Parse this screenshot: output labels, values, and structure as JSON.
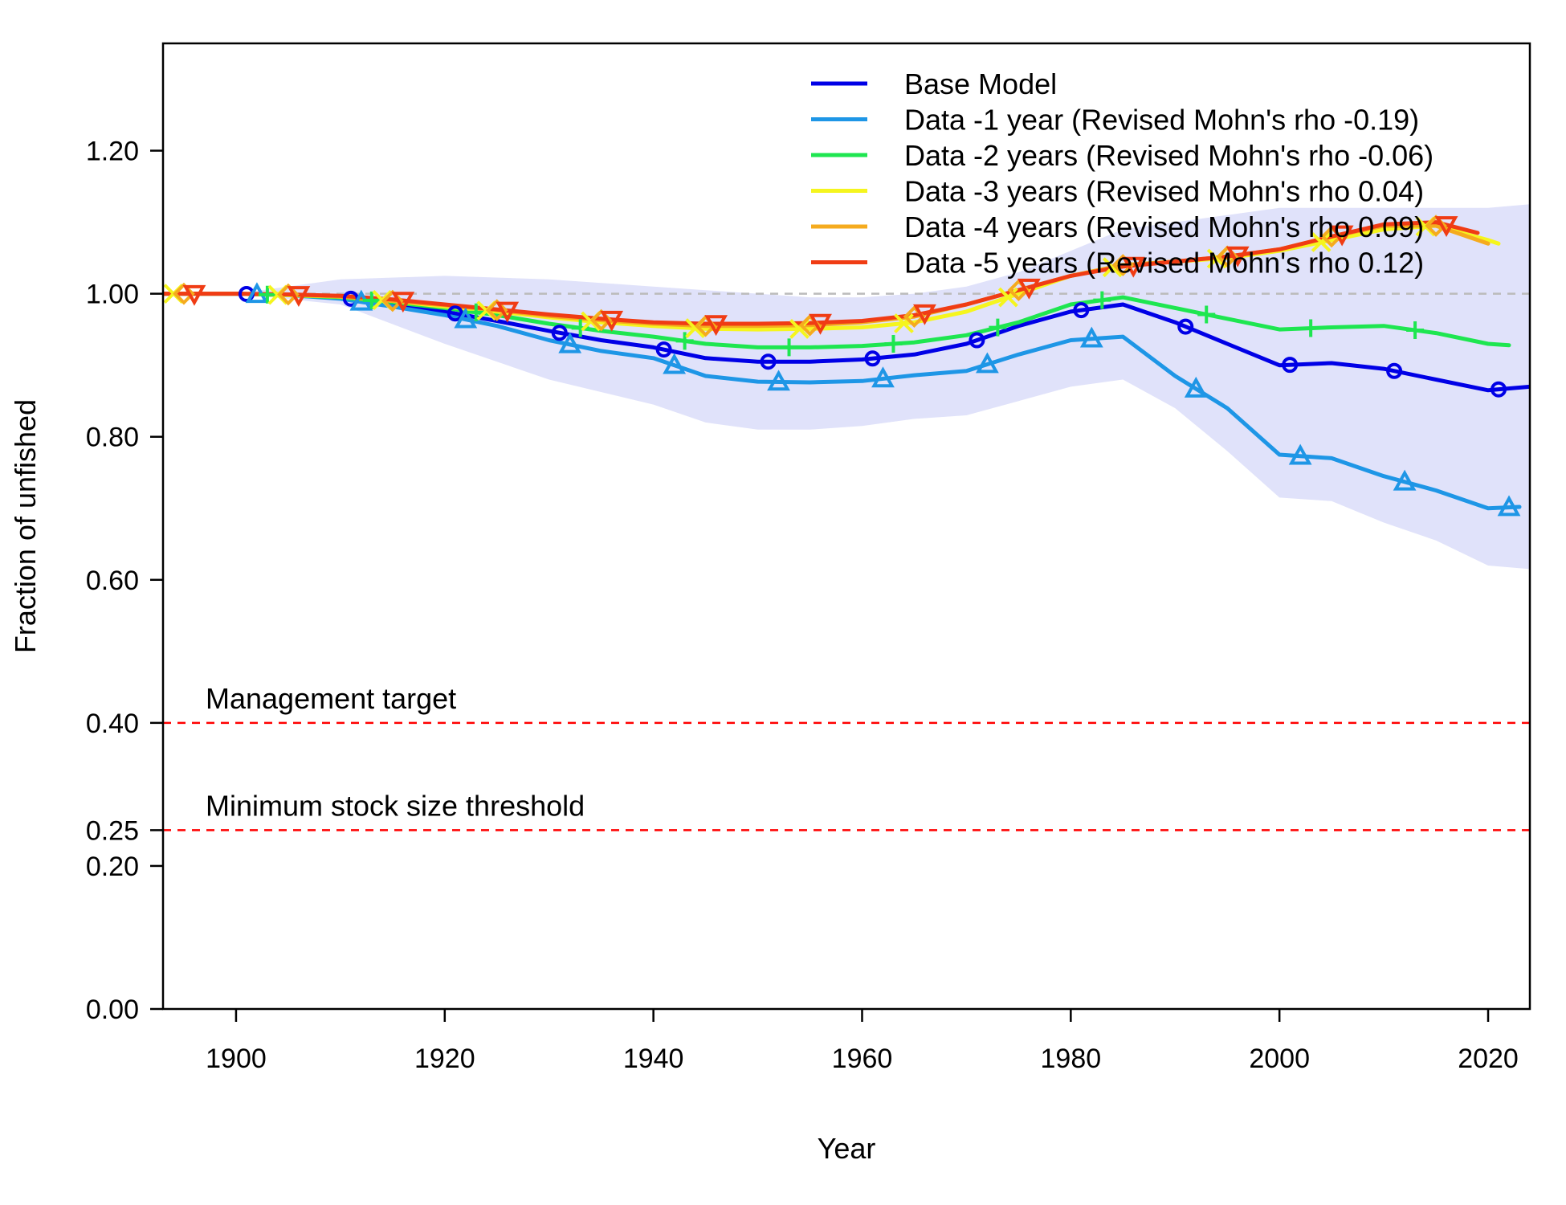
{
  "chart_data": {
    "type": "line",
    "title": "",
    "xlabel": "Year",
    "ylabel": "Fraction of unfished",
    "xlim": [
      1893,
      2024
    ],
    "ylim": [
      0,
      1.35
    ],
    "x_ticks": [
      1900,
      1920,
      1940,
      1960,
      1980,
      2000,
      2020
    ],
    "y_ticks": [
      0.0,
      0.2,
      0.25,
      0.4,
      0.6,
      0.8,
      1.0,
      1.2
    ],
    "y_tick_labels": [
      "0.00",
      "0.20",
      "0.25",
      "0.40",
      "0.60",
      "0.80",
      "1.00",
      "1.20"
    ],
    "grid": false,
    "legend_position": "top-right",
    "reference_lines": [
      {
        "y": 1.0,
        "label": "",
        "color": "#bbbbbb"
      },
      {
        "y": 0.4,
        "label": "Management target",
        "color": "#ff0000"
      },
      {
        "y": 0.25,
        "label": "Minimum stock size threshold",
        "color": "#ff0000"
      }
    ],
    "confidence_band": {
      "color": "#e0e2fa",
      "x": [
        1893,
        1900,
        1910,
        1920,
        1930,
        1940,
        1945,
        1950,
        1955,
        1960,
        1965,
        1970,
        1975,
        1980,
        1985,
        1990,
        1995,
        2000,
        2005,
        2010,
        2015,
        2020,
        2024
      ],
      "upper": [
        1.0,
        1.0,
        1.02,
        1.025,
        1.02,
        1.01,
        1.005,
        1.0,
        0.995,
        0.995,
        1.0,
        1.01,
        1.03,
        1.06,
        1.09,
        1.1,
        1.11,
        1.12,
        1.12,
        1.12,
        1.12,
        1.12,
        1.125
      ],
      "lower": [
        1.0,
        1.0,
        0.985,
        0.93,
        0.88,
        0.845,
        0.82,
        0.81,
        0.81,
        0.815,
        0.825,
        0.83,
        0.85,
        0.87,
        0.88,
        0.84,
        0.78,
        0.715,
        0.71,
        0.68,
        0.655,
        0.62,
        0.615
      ]
    },
    "series": [
      {
        "name": "Base Model",
        "color": "#0000e6",
        "marker": "circle",
        "x": [
          1893,
          1900,
          1905,
          1910,
          1915,
          1920,
          1925,
          1930,
          1935,
          1940,
          1945,
          1950,
          1955,
          1960,
          1965,
          1970,
          1975,
          1980,
          1985,
          1990,
          1995,
          2000,
          2005,
          2010,
          2015,
          2020,
          2024
        ],
        "y": [
          1.0,
          1.0,
          0.998,
          0.995,
          0.985,
          0.975,
          0.962,
          0.948,
          0.935,
          0.925,
          0.91,
          0.905,
          0.905,
          0.908,
          0.915,
          0.93,
          0.955,
          0.975,
          0.985,
          0.96,
          0.93,
          0.9,
          0.903,
          0.895,
          0.88,
          0.865,
          0.87
        ],
        "marker_x": [
          1901,
          1911,
          1921,
          1931,
          1941,
          1951,
          1961,
          1971,
          1981,
          1991,
          2001,
          2011,
          2021
        ]
      },
      {
        "name": "Data -1 year (Revised Mohn's rho -0.19)",
        "color": "#1e96e6",
        "marker": "triangle-up",
        "x": [
          1893,
          1900,
          1905,
          1910,
          1915,
          1920,
          1925,
          1930,
          1935,
          1940,
          1945,
          1950,
          1955,
          1960,
          1965,
          1970,
          1975,
          1980,
          1985,
          1990,
          1995,
          2000,
          2005,
          2010,
          2015,
          2020,
          2023
        ],
        "y": [
          1.0,
          1.0,
          0.998,
          0.993,
          0.982,
          0.97,
          0.955,
          0.935,
          0.92,
          0.91,
          0.885,
          0.877,
          0.876,
          0.878,
          0.886,
          0.892,
          0.915,
          0.935,
          0.94,
          0.885,
          0.84,
          0.775,
          0.77,
          0.745,
          0.725,
          0.7,
          0.702
        ],
        "marker_x": [
          1902,
          1912,
          1922,
          1932,
          1942,
          1952,
          1962,
          1972,
          1982,
          1992,
          2002,
          2012,
          2022
        ]
      },
      {
        "name": "Data -2 years (Revised Mohn's rho -0.06)",
        "color": "#1ee650",
        "marker": "plus",
        "x": [
          1893,
          1900,
          1905,
          1910,
          1915,
          1920,
          1925,
          1930,
          1935,
          1940,
          1945,
          1950,
          1955,
          1960,
          1965,
          1970,
          1975,
          1980,
          1985,
          1990,
          1995,
          2000,
          2005,
          2010,
          2015,
          2020,
          2022
        ],
        "y": [
          1.0,
          1.0,
          0.998,
          0.995,
          0.988,
          0.98,
          0.97,
          0.958,
          0.948,
          0.94,
          0.93,
          0.925,
          0.925,
          0.927,
          0.932,
          0.942,
          0.96,
          0.985,
          0.995,
          0.98,
          0.965,
          0.95,
          0.953,
          0.955,
          0.945,
          0.93,
          0.928
        ],
        "marker_x": [
          1903,
          1913,
          1923,
          1933,
          1943,
          1953,
          1963,
          1973,
          1983,
          1993,
          2003,
          2013
        ]
      },
      {
        "name": "Data -3 years (Revised Mohn's rho 0.04)",
        "color": "#f5f51e",
        "marker": "x",
        "x": [
          1893,
          1900,
          1905,
          1910,
          1915,
          1920,
          1925,
          1930,
          1935,
          1940,
          1945,
          1950,
          1955,
          1960,
          1965,
          1970,
          1975,
          1980,
          1985,
          1990,
          1995,
          2000,
          2005,
          2010,
          2015,
          2020,
          2021
        ],
        "y": [
          1.0,
          1.0,
          0.998,
          0.996,
          0.99,
          0.982,
          0.975,
          0.967,
          0.96,
          0.955,
          0.951,
          0.95,
          0.951,
          0.953,
          0.96,
          0.975,
          1.0,
          1.025,
          1.04,
          1.045,
          1.05,
          1.06,
          1.075,
          1.09,
          1.095,
          1.075,
          1.07
        ],
        "marker_x": [
          1894,
          1904,
          1914,
          1924,
          1934,
          1944,
          1954,
          1964,
          1974,
          1984,
          1994,
          2004,
          2014
        ]
      },
      {
        "name": "Data -4 years (Revised Mohn's rho 0.09)",
        "color": "#f5ab1e",
        "marker": "diamond",
        "x": [
          1893,
          1900,
          1905,
          1910,
          1915,
          1920,
          1925,
          1930,
          1935,
          1940,
          1945,
          1950,
          1955,
          1960,
          1965,
          1970,
          1975,
          1980,
          1985,
          1990,
          1995,
          2000,
          2005,
          2010,
          2015,
          2020
        ],
        "y": [
          1.0,
          1.0,
          0.999,
          0.996,
          0.99,
          0.984,
          0.977,
          0.969,
          0.963,
          0.958,
          0.955,
          0.955,
          0.956,
          0.96,
          0.968,
          0.985,
          1.005,
          1.025,
          1.04,
          1.045,
          1.052,
          1.062,
          1.08,
          1.095,
          1.095,
          1.07
        ],
        "marker_x": [
          1895,
          1905,
          1915,
          1925,
          1935,
          1945,
          1955,
          1965,
          1975,
          1985,
          1995,
          2005,
          2015
        ]
      },
      {
        "name": "Data -5 years (Revised Mohn's rho 0.12)",
        "color": "#f03c14",
        "marker": "triangle-down",
        "x": [
          1893,
          1900,
          1905,
          1910,
          1915,
          1920,
          1925,
          1930,
          1935,
          1940,
          1945,
          1950,
          1955,
          1960,
          1965,
          1970,
          1975,
          1980,
          1985,
          1990,
          1995,
          2000,
          2005,
          2010,
          2015,
          2019
        ],
        "y": [
          1.0,
          1.0,
          0.999,
          0.997,
          0.992,
          0.985,
          0.978,
          0.971,
          0.965,
          0.96,
          0.958,
          0.958,
          0.959,
          0.962,
          0.97,
          0.985,
          1.005,
          1.025,
          1.038,
          1.045,
          1.052,
          1.062,
          1.08,
          1.097,
          1.1,
          1.085
        ],
        "marker_x": [
          1896,
          1906,
          1916,
          1926,
          1936,
          1946,
          1956,
          1966,
          1976,
          1986,
          1996,
          2006,
          2016
        ]
      }
    ]
  }
}
